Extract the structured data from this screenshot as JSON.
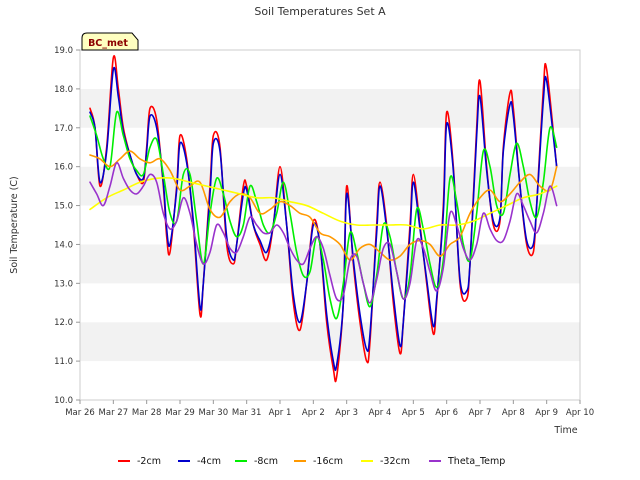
{
  "chart_data": {
    "type": "line",
    "title": "Soil Temperatures Set A",
    "xlabel": "Time",
    "ylabel": "Soil Temperature (C)",
    "badge": "BC_met",
    "x_tick_labels": [
      "Mar 26",
      "Mar 27",
      "Mar 28",
      "Mar 29",
      "Mar 30",
      "Mar 31",
      "Apr 1",
      "Apr 2",
      "Apr 3",
      "Apr 4",
      "Apr 5",
      "Apr 6",
      "Apr 7",
      "Apr 8",
      "Apr 9",
      "Apr 10"
    ],
    "xlim": [
      0,
      15
    ],
    "ylim": [
      10.0,
      19.0
    ],
    "y_ticks": [
      "10.0",
      "11.0",
      "12.0",
      "13.0",
      "14.0",
      "15.0",
      "16.0",
      "17.0",
      "18.0",
      "19.0"
    ],
    "grid": "horizontal bands",
    "legend_position": "bottom",
    "x_unit": "days since Mar 26",
    "series": [
      {
        "name": "-2cm",
        "color": "#ff0000",
        "x": [
          0.3,
          0.45,
          0.6,
          0.8,
          1.0,
          1.15,
          1.3,
          1.5,
          1.7,
          1.9,
          2.0,
          2.1,
          2.3,
          2.5,
          2.6,
          2.7,
          2.9,
          3.0,
          3.2,
          3.4,
          3.6,
          3.7,
          3.9,
          4.0,
          4.2,
          4.4,
          4.6,
          4.7,
          4.9,
          5.0,
          5.2,
          5.4,
          5.6,
          5.8,
          6.0,
          6.2,
          6.4,
          6.6,
          6.8,
          7.0,
          7.2,
          7.4,
          7.6,
          7.7,
          7.9,
          8.0,
          8.2,
          8.4,
          8.6,
          8.7,
          8.9,
          9.0,
          9.2,
          9.4,
          9.6,
          9.7,
          9.9,
          10.0,
          10.2,
          10.4,
          10.6,
          10.7,
          10.9,
          11.0,
          11.2,
          11.4,
          11.6,
          11.7,
          11.9,
          12.0,
          12.2,
          12.4,
          12.6,
          12.7,
          12.9,
          13.0,
          13.2,
          13.4,
          13.6,
          13.7,
          13.9,
          14.0,
          14.3
        ],
        "values": [
          17.5,
          17.0,
          15.5,
          16.5,
          18.8,
          18.0,
          17.0,
          16.3,
          15.8,
          15.6,
          16.5,
          17.5,
          17.2,
          15.5,
          14.2,
          13.8,
          15.5,
          16.8,
          16.2,
          14.5,
          12.2,
          13.0,
          15.5,
          16.8,
          16.5,
          14.0,
          13.5,
          14.0,
          15.5,
          15.5,
          14.5,
          14.0,
          13.6,
          14.5,
          16.0,
          14.5,
          12.5,
          11.8,
          13.0,
          14.6,
          14.0,
          12.0,
          10.8,
          10.6,
          12.5,
          15.5,
          13.5,
          12.0,
          11.0,
          11.5,
          14.5,
          15.6,
          14.5,
          12.5,
          11.2,
          12.0,
          14.5,
          15.8,
          14.5,
          13.0,
          11.7,
          12.5,
          15.0,
          17.4,
          16.0,
          13.0,
          12.6,
          13.5,
          17.0,
          18.2,
          16.0,
          14.5,
          14.6,
          16.5,
          17.9,
          17.5,
          15.5,
          14.0,
          13.8,
          15.0,
          18.0,
          18.5,
          16.0
        ]
      },
      {
        "name": "-4cm",
        "color": "#0000cc",
        "x": [
          0.3,
          0.45,
          0.6,
          0.8,
          1.0,
          1.15,
          1.3,
          1.5,
          1.7,
          1.9,
          2.0,
          2.1,
          2.3,
          2.5,
          2.6,
          2.7,
          2.9,
          3.0,
          3.2,
          3.4,
          3.6,
          3.7,
          3.9,
          4.0,
          4.2,
          4.4,
          4.6,
          4.7,
          4.9,
          5.0,
          5.2,
          5.4,
          5.6,
          5.8,
          6.0,
          6.2,
          6.4,
          6.6,
          6.8,
          7.0,
          7.2,
          7.4,
          7.6,
          7.7,
          7.9,
          8.0,
          8.2,
          8.4,
          8.6,
          8.7,
          8.9,
          9.0,
          9.2,
          9.4,
          9.6,
          9.7,
          9.9,
          10.0,
          10.2,
          10.4,
          10.6,
          10.7,
          10.9,
          11.0,
          11.2,
          11.4,
          11.6,
          11.7,
          11.9,
          12.0,
          12.2,
          12.4,
          12.6,
          12.7,
          12.9,
          13.0,
          13.2,
          13.4,
          13.6,
          13.7,
          13.9,
          14.0,
          14.3
        ],
        "values": [
          17.4,
          17.0,
          15.6,
          16.4,
          18.5,
          17.8,
          16.9,
          16.3,
          15.8,
          15.7,
          16.4,
          17.3,
          17.0,
          15.6,
          14.4,
          14.0,
          15.4,
          16.6,
          16.1,
          14.6,
          12.4,
          13.0,
          15.3,
          16.6,
          16.4,
          14.2,
          13.6,
          14.0,
          15.3,
          15.4,
          14.5,
          14.1,
          13.8,
          14.5,
          15.8,
          14.5,
          12.7,
          12.0,
          13.0,
          14.5,
          14.0,
          12.2,
          11.0,
          10.9,
          12.5,
          15.3,
          13.6,
          12.2,
          11.3,
          11.7,
          14.3,
          15.5,
          14.4,
          12.7,
          11.4,
          12.0,
          14.3,
          15.6,
          14.4,
          13.1,
          11.9,
          12.6,
          14.8,
          17.1,
          15.9,
          13.1,
          12.8,
          13.5,
          16.8,
          17.8,
          15.9,
          14.6,
          14.7,
          16.4,
          17.6,
          17.3,
          15.5,
          14.1,
          14.0,
          15.0,
          17.7,
          18.2,
          16.0
        ]
      },
      {
        "name": "-8cm",
        "color": "#00ee00",
        "x": [
          0.3,
          0.5,
          0.7,
          0.9,
          1.1,
          1.3,
          1.5,
          1.7,
          1.9,
          2.1,
          2.3,
          2.5,
          2.7,
          2.9,
          3.1,
          3.3,
          3.5,
          3.7,
          3.9,
          4.1,
          4.3,
          4.5,
          4.7,
          4.9,
          5.1,
          5.3,
          5.5,
          5.7,
          5.9,
          6.1,
          6.3,
          6.5,
          6.7,
          6.9,
          7.1,
          7.3,
          7.5,
          7.7,
          7.9,
          8.1,
          8.3,
          8.5,
          8.7,
          8.9,
          9.1,
          9.3,
          9.5,
          9.7,
          9.9,
          10.1,
          10.3,
          10.5,
          10.7,
          10.9,
          11.1,
          11.3,
          11.5,
          11.7,
          11.9,
          12.1,
          12.3,
          12.5,
          12.7,
          12.9,
          13.1,
          13.3,
          13.5,
          13.7,
          13.9,
          14.1,
          14.3
        ],
        "values": [
          17.3,
          16.8,
          16.2,
          16.0,
          17.4,
          16.8,
          16.2,
          15.9,
          15.8,
          16.5,
          16.7,
          15.8,
          14.8,
          14.6,
          15.8,
          15.8,
          14.6,
          13.5,
          14.8,
          15.7,
          15.3,
          14.6,
          14.2,
          14.5,
          15.5,
          15.1,
          14.5,
          14.3,
          14.8,
          15.6,
          14.8,
          13.8,
          13.2,
          13.3,
          14.2,
          13.6,
          12.6,
          12.1,
          13.0,
          14.3,
          13.8,
          13.0,
          12.4,
          13.2,
          14.5,
          14.2,
          13.3,
          12.6,
          13.2,
          14.9,
          14.4,
          13.5,
          12.9,
          13.6,
          15.7,
          15.1,
          14.0,
          13.6,
          14.8,
          16.4,
          16.0,
          15.0,
          14.8,
          15.8,
          16.6,
          16.0,
          15.1,
          14.7,
          15.6,
          17.0,
          16.5
        ]
      },
      {
        "name": "-16cm",
        "color": "#ff9900",
        "x": [
          0.3,
          0.6,
          0.9,
          1.2,
          1.5,
          1.8,
          2.1,
          2.4,
          2.7,
          3.0,
          3.3,
          3.6,
          3.9,
          4.2,
          4.5,
          4.8,
          5.1,
          5.4,
          5.7,
          6.0,
          6.3,
          6.6,
          6.9,
          7.2,
          7.5,
          7.8,
          8.1,
          8.4,
          8.7,
          9.0,
          9.3,
          9.6,
          9.9,
          10.2,
          10.5,
          10.8,
          11.1,
          11.4,
          11.7,
          12.0,
          12.3,
          12.6,
          12.9,
          13.2,
          13.5,
          13.8,
          14.1,
          14.3
        ],
        "values": [
          16.3,
          16.2,
          16.0,
          16.2,
          16.4,
          16.2,
          16.1,
          16.2,
          15.9,
          15.4,
          15.5,
          15.6,
          14.9,
          14.7,
          15.1,
          15.3,
          15.2,
          14.8,
          14.9,
          15.1,
          15.0,
          14.8,
          14.7,
          14.3,
          14.2,
          14.0,
          13.6,
          13.9,
          14.0,
          13.8,
          13.6,
          13.7,
          14.0,
          14.1,
          14.0,
          13.7,
          14.0,
          14.2,
          14.8,
          15.2,
          15.4,
          15.1,
          15.3,
          15.6,
          15.8,
          15.5,
          15.4,
          16.0
        ]
      },
      {
        "name": "-32cm",
        "color": "#ffff00",
        "x": [
          0.3,
          0.8,
          1.3,
          1.8,
          2.3,
          2.8,
          3.3,
          3.8,
          4.3,
          4.8,
          5.3,
          5.8,
          6.3,
          6.8,
          7.3,
          7.8,
          8.3,
          8.8,
          9.3,
          9.8,
          10.3,
          10.8,
          11.3,
          11.8,
          12.3,
          12.8,
          13.3,
          13.8,
          14.3
        ],
        "values": [
          14.9,
          15.2,
          15.4,
          15.6,
          15.7,
          15.7,
          15.6,
          15.5,
          15.4,
          15.3,
          15.2,
          15.2,
          15.1,
          15.0,
          14.8,
          14.6,
          14.5,
          14.5,
          14.5,
          14.5,
          14.4,
          14.5,
          14.5,
          14.6,
          14.8,
          15.0,
          15.2,
          15.3,
          15.5
        ]
      },
      {
        "name": "Theta_Temp",
        "color": "#9933cc",
        "x": [
          0.3,
          0.5,
          0.7,
          0.9,
          1.1,
          1.3,
          1.5,
          1.7,
          1.9,
          2.1,
          2.3,
          2.5,
          2.7,
          2.9,
          3.1,
          3.3,
          3.5,
          3.7,
          3.9,
          4.1,
          4.3,
          4.5,
          4.7,
          4.9,
          5.1,
          5.3,
          5.5,
          5.7,
          5.9,
          6.1,
          6.3,
          6.5,
          6.7,
          6.9,
          7.1,
          7.3,
          7.5,
          7.7,
          7.9,
          8.1,
          8.3,
          8.5,
          8.7,
          8.9,
          9.1,
          9.3,
          9.5,
          9.7,
          9.9,
          10.1,
          10.3,
          10.5,
          10.7,
          10.9,
          11.1,
          11.3,
          11.5,
          11.7,
          11.9,
          12.1,
          12.3,
          12.5,
          12.7,
          12.9,
          13.1,
          13.3,
          13.5,
          13.7,
          13.9,
          14.1,
          14.3
        ],
        "values": [
          15.6,
          15.3,
          15.0,
          15.5,
          16.1,
          15.7,
          15.4,
          15.3,
          15.5,
          15.8,
          15.6,
          14.8,
          14.4,
          14.6,
          15.2,
          14.8,
          14.0,
          13.5,
          13.8,
          14.5,
          14.3,
          13.9,
          13.8,
          14.2,
          14.7,
          14.5,
          14.3,
          14.3,
          14.5,
          14.3,
          13.9,
          13.6,
          13.5,
          13.9,
          14.2,
          13.9,
          13.2,
          12.6,
          12.7,
          13.6,
          13.7,
          13.0,
          12.5,
          13.1,
          13.9,
          14.0,
          13.3,
          12.6,
          13.0,
          14.1,
          13.9,
          13.3,
          12.8,
          13.4,
          14.8,
          14.5,
          13.9,
          13.6,
          14.0,
          14.8,
          14.4,
          14.1,
          14.1,
          14.6,
          15.3,
          15.0,
          14.6,
          14.3,
          14.8,
          15.5,
          15.0
        ]
      }
    ]
  }
}
